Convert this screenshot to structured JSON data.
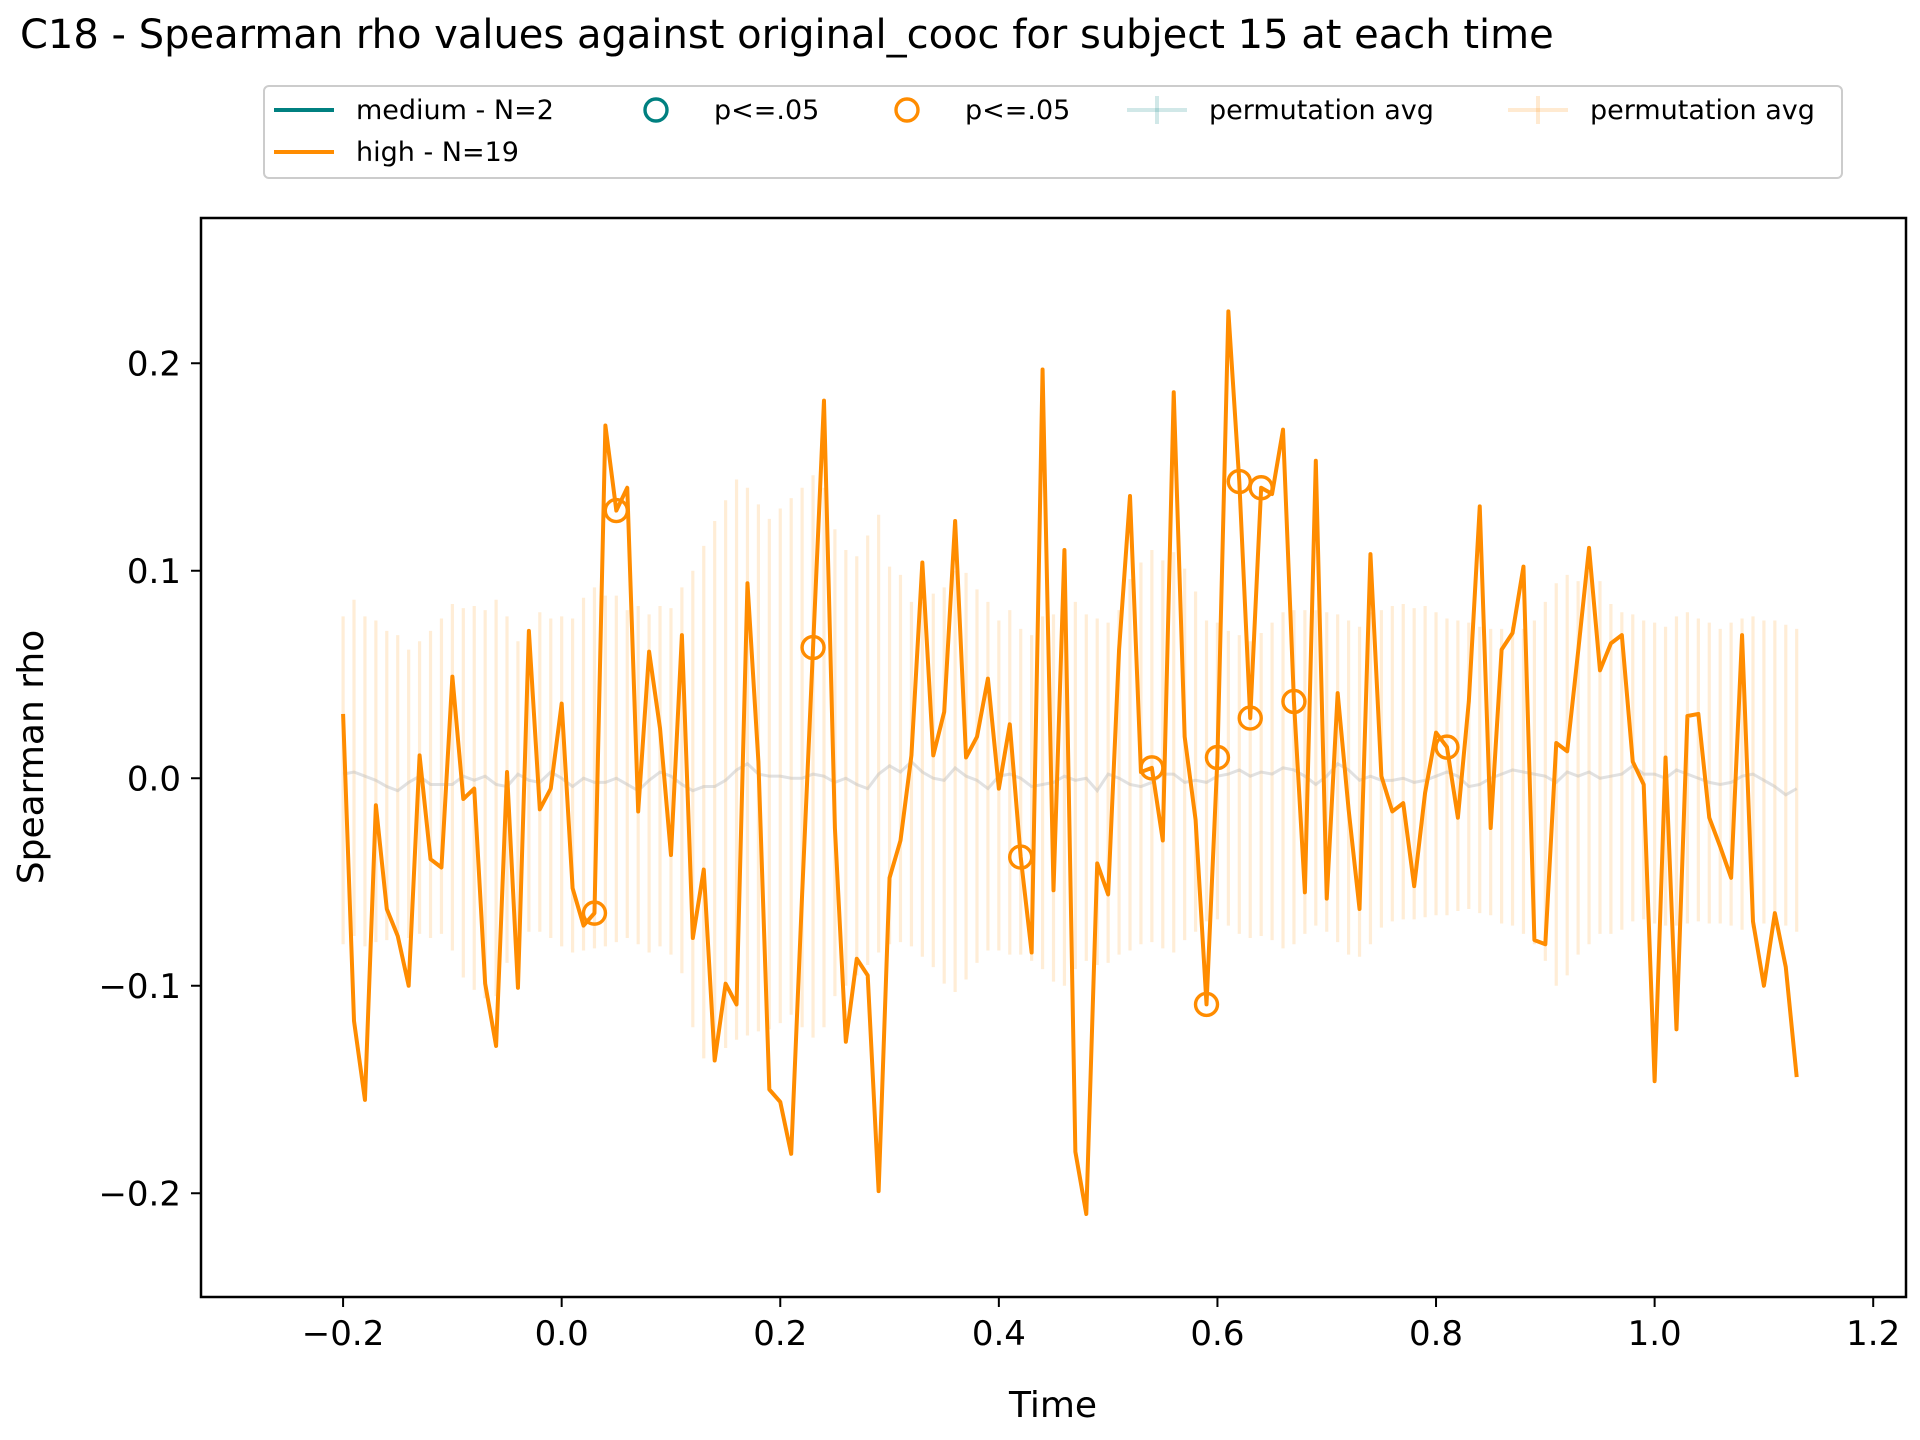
{
  "chart_data": {
    "type": "line",
    "title": "C18 - Spearman rho values against original_cooc for subject 15 at each time",
    "xlabel": "Time",
    "ylabel": "Spearman rho",
    "xlim": [
      -0.33,
      1.23
    ],
    "ylim": [
      -0.25,
      0.27
    ],
    "xticks": [
      -0.2,
      0.0,
      0.2,
      0.4,
      0.6,
      0.8,
      1.0,
      1.2
    ],
    "xtick_labels": [
      "−0.2",
      "0.0",
      "0.2",
      "0.4",
      "0.6",
      "0.8",
      "1.0",
      "1.2"
    ],
    "yticks": [
      -0.2,
      -0.1,
      0.0,
      0.1,
      0.2
    ],
    "ytick_labels": [
      "−0.2",
      "−0.1",
      "0.0",
      "0.1",
      "0.2"
    ],
    "grid": false,
    "legend_position": "top-center",
    "legend": [
      {
        "kind": "line",
        "label": "medium - N=2",
        "color": "#008080"
      },
      {
        "kind": "line",
        "label": "high - N=19",
        "color": "#ff8c00"
      },
      {
        "kind": "marker",
        "label": "p<=.05",
        "color": "#008080"
      },
      {
        "kind": "marker",
        "label": "p<=.05",
        "color": "#ff8c00"
      },
      {
        "kind": "errbar",
        "label": "permutation avg",
        "color": "#008080"
      },
      {
        "kind": "errbar",
        "label": "permutation avg",
        "color": "#ff8c00"
      }
    ],
    "series": [
      {
        "name": "high - N=19",
        "color": "#ff8c00",
        "x_start": -0.2,
        "x_step": 0.01,
        "values": [
          0.031,
          -0.117,
          -0.155,
          -0.013,
          -0.063,
          -0.076,
          -0.1,
          0.011,
          -0.039,
          -0.043,
          0.049,
          -0.01,
          -0.005,
          -0.099,
          -0.129,
          0.003,
          -0.101,
          0.071,
          -0.015,
          -0.005,
          0.036,
          -0.053,
          -0.071,
          -0.065,
          0.17,
          0.129,
          0.14,
          -0.016,
          0.061,
          0.024,
          -0.037,
          0.069,
          -0.077,
          -0.044,
          -0.136,
          -0.099,
          -0.109,
          0.094,
          0.008,
          -0.15,
          -0.156,
          -0.181,
          -0.056,
          0.063,
          0.182,
          -0.024,
          -0.127,
          -0.087,
          -0.095,
          -0.199,
          -0.048,
          -0.03,
          0.011,
          0.104,
          0.011,
          0.032,
          0.124,
          0.01,
          0.02,
          0.048,
          -0.005,
          0.026,
          -0.038,
          -0.084,
          0.197,
          -0.054,
          0.11,
          -0.18,
          -0.21,
          -0.041,
          -0.056,
          0.062,
          0.136,
          0.003,
          0.005,
          -0.03,
          0.186,
          0.02,
          -0.02,
          -0.109,
          0.01,
          0.225,
          0.143,
          0.029,
          0.14,
          0.137,
          0.168,
          0.037,
          -0.055,
          0.153,
          -0.058,
          0.041,
          -0.015,
          -0.063,
          0.108,
          0.001,
          -0.016,
          -0.012,
          -0.052,
          -0.007,
          0.022,
          0.015,
          -0.019,
          0.037,
          0.131,
          -0.024,
          0.062,
          0.07,
          0.102,
          -0.078,
          -0.08,
          0.017,
          0.013,
          0.061,
          0.111,
          0.052,
          0.065,
          0.069,
          0.008,
          -0.003,
          -0.146,
          0.01,
          -0.121,
          0.03,
          0.031,
          -0.019,
          -0.033,
          -0.048,
          0.069,
          -0.069,
          -0.1,
          -0.065,
          -0.091,
          -0.144
        ],
        "significant_x": [
          0.03,
          0.05,
          0.23,
          0.42,
          0.54,
          0.59,
          0.6,
          0.62,
          0.63,
          0.64,
          0.67,
          0.81
        ]
      }
    ],
    "permutation_avg": {
      "name": "permutation avg",
      "color": "#ff8c00",
      "mean_values": [
        0.002,
        0.003,
        0.001,
        -0.001,
        -0.004,
        -0.006,
        -0.002,
        0.001,
        -0.003,
        -0.003,
        -0.003,
        0.001,
        -0.001,
        0.001,
        -0.003,
        -0.004,
        0.002,
        -0.001,
        -0.002,
        0.003,
        0.0,
        -0.004,
        0.0,
        -0.002,
        -0.002,
        0.0,
        -0.003,
        -0.006,
        -0.001,
        0.003,
        0.001,
        -0.003,
        -0.006,
        -0.004,
        -0.004,
        -0.001,
        0.004,
        0.007,
        0.002,
        0.001,
        0.001,
        0.0,
        0.0,
        0.002,
        0.001,
        -0.002,
        0.0,
        -0.003,
        -0.005,
        0.002,
        0.006,
        0.003,
        0.008,
        0.003,
        0.0,
        -0.001,
        0.005,
        0.001,
        -0.001,
        -0.005,
        0.001,
        0.002,
        0.0,
        -0.004,
        -0.003,
        -0.002,
        0.001,
        -0.001,
        0.0,
        -0.006,
        0.002,
        0.0,
        -0.003,
        -0.004,
        -0.002,
        0.002,
        0.002,
        -0.002,
        -0.001,
        -0.002,
        0.001,
        0.002,
        0.004,
        0.001,
        0.003,
        0.002,
        0.005,
        0.004,
        0.001,
        -0.003,
        0.001,
        0.007,
        0.004,
        -0.001,
        0.001,
        -0.001,
        -0.001,
        0.0,
        -0.002,
        -0.001,
        0.001,
        0.003,
        0.001,
        -0.004,
        -0.003,
        0.0,
        0.002,
        0.004,
        0.003,
        0.002,
        0.001,
        -0.002,
        0.003,
        0.001,
        0.003,
        0.0,
        0.001,
        0.002,
        0.006,
        0.002,
        0.002,
        0.0,
        0.004,
        0.002,
        0.0,
        -0.002,
        -0.003,
        -0.002,
        0.001,
        0.002,
        -0.001,
        -0.004,
        -0.008,
        -0.005,
        -0.002
      ],
      "upper": [
        0.078,
        0.086,
        0.078,
        0.076,
        0.071,
        0.069,
        0.062,
        0.066,
        0.071,
        0.077,
        0.084,
        0.082,
        0.083,
        0.081,
        0.086,
        0.078,
        0.066,
        0.066,
        0.08,
        0.077,
        0.078,
        0.077,
        0.087,
        0.092,
        0.088,
        0.088,
        0.081,
        0.083,
        0.079,
        0.083,
        0.082,
        0.092,
        0.1,
        0.112,
        0.124,
        0.134,
        0.144,
        0.14,
        0.132,
        0.125,
        0.13,
        0.135,
        0.14,
        0.146,
        0.14,
        0.12,
        0.11,
        0.107,
        0.117,
        0.127,
        0.102,
        0.098,
        0.085,
        0.085,
        0.089,
        0.092,
        0.1,
        0.099,
        0.091,
        0.085,
        0.076,
        0.081,
        0.072,
        0.069,
        0.078,
        0.079,
        0.085,
        0.085,
        0.079,
        0.077,
        0.075,
        0.081,
        0.096,
        0.104,
        0.11,
        0.105,
        0.109,
        0.101,
        0.09,
        0.076,
        0.075,
        0.071,
        0.069,
        0.066,
        0.07,
        0.075,
        0.08,
        0.081,
        0.081,
        0.081,
        0.08,
        0.079,
        0.076,
        0.073,
        0.08,
        0.081,
        0.083,
        0.084,
        0.082,
        0.083,
        0.08,
        0.077,
        0.076,
        0.075,
        0.073,
        0.072,
        0.072,
        0.073,
        0.072,
        0.076,
        0.085,
        0.094,
        0.098,
        0.095,
        0.1,
        0.095,
        0.084,
        0.08,
        0.079,
        0.076,
        0.075,
        0.073,
        0.078,
        0.08,
        0.077,
        0.075,
        0.072,
        0.075,
        0.077,
        0.078,
        0.076,
        0.076,
        0.074,
        0.072,
        0.066
      ],
      "lower": [
        -0.08,
        -0.076,
        -0.081,
        -0.079,
        -0.078,
        -0.075,
        -0.077,
        -0.075,
        -0.077,
        -0.075,
        -0.083,
        -0.096,
        -0.102,
        -0.106,
        -0.105,
        -0.089,
        -0.08,
        -0.074,
        -0.074,
        -0.077,
        -0.081,
        -0.084,
        -0.083,
        -0.082,
        -0.081,
        -0.079,
        -0.077,
        -0.08,
        -0.084,
        -0.081,
        -0.085,
        -0.094,
        -0.12,
        -0.135,
        -0.132,
        -0.13,
        -0.126,
        -0.124,
        -0.122,
        -0.121,
        -0.118,
        -0.114,
        -0.12,
        -0.125,
        -0.12,
        -0.105,
        -0.1,
        -0.095,
        -0.09,
        -0.084,
        -0.08,
        -0.079,
        -0.081,
        -0.086,
        -0.091,
        -0.099,
        -0.103,
        -0.097,
        -0.089,
        -0.083,
        -0.083,
        -0.085,
        -0.085,
        -0.088,
        -0.092,
        -0.098,
        -0.1,
        -0.092,
        -0.088,
        -0.09,
        -0.089,
        -0.085,
        -0.083,
        -0.08,
        -0.079,
        -0.082,
        -0.084,
        -0.078,
        -0.074,
        -0.069,
        -0.068,
        -0.071,
        -0.075,
        -0.077,
        -0.076,
        -0.078,
        -0.082,
        -0.08,
        -0.075,
        -0.071,
        -0.074,
        -0.079,
        -0.085,
        -0.086,
        -0.08,
        -0.072,
        -0.069,
        -0.068,
        -0.068,
        -0.067,
        -0.066,
        -0.066,
        -0.064,
        -0.063,
        -0.065,
        -0.066,
        -0.07,
        -0.071,
        -0.075,
        -0.08,
        -0.088,
        -0.1,
        -0.095,
        -0.085,
        -0.08,
        -0.075,
        -0.075,
        -0.073,
        -0.069,
        -0.068,
        -0.07,
        -0.071,
        -0.071,
        -0.07,
        -0.069,
        -0.07,
        -0.07,
        -0.071,
        -0.073,
        -0.072,
        -0.07,
        -0.068,
        -0.071,
        -0.074,
        -0.075
      ]
    }
  }
}
